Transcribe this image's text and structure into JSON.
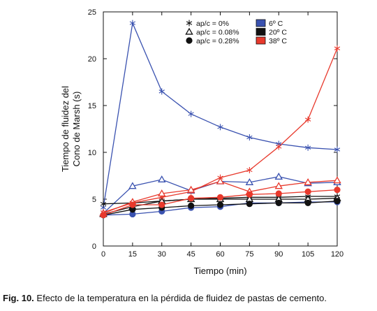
{
  "chart_data": {
    "type": "line",
    "xlabel": "Tiempo (min)",
    "ylabel_lines": [
      "Tiempo de fluidez del",
      "Cono de Marsh (s)"
    ],
    "xlim": [
      0,
      120
    ],
    "ylim": [
      0,
      25
    ],
    "x_ticks": [
      0,
      15,
      30,
      45,
      60,
      75,
      90,
      105,
      120
    ],
    "y_ticks": [
      0,
      5,
      10,
      15,
      20,
      25
    ],
    "grid": false,
    "legend_position": "top-right",
    "marker_legend": [
      {
        "label": "ap/c = 0%",
        "marker": "asterisk"
      },
      {
        "label": "ap/c = 0.08%",
        "marker": "triangle"
      },
      {
        "label": "ap/c = 0.28%",
        "marker": "circle"
      }
    ],
    "color_legend": [
      {
        "label": "6º C",
        "color": "#3a52b0"
      },
      {
        "label": "20º C",
        "color": "#111111"
      },
      {
        "label": "38º C",
        "color": "#e8392c"
      }
    ],
    "x": [
      0,
      15,
      30,
      45,
      60,
      75,
      90,
      105,
      120
    ],
    "series": [
      {
        "temp": "6º C",
        "dosage": "ap/c = 0%",
        "color": "#3a52b0",
        "marker": "asterisk",
        "values": [
          4.1,
          23.8,
          16.5,
          14.1,
          12.7,
          11.6,
          10.9,
          10.5,
          10.3
        ]
      },
      {
        "temp": "6º C",
        "dosage": "ap/c = 0.08%",
        "color": "#3a52b0",
        "marker": "triangle",
        "values": [
          3.5,
          6.4,
          7.1,
          5.9,
          6.9,
          6.8,
          7.4,
          6.7,
          6.8
        ]
      },
      {
        "temp": "6º C",
        "dosage": "ap/c = 0.28%",
        "color": "#3a52b0",
        "marker": "circle",
        "values": [
          3.3,
          3.4,
          3.7,
          4.1,
          4.2,
          4.6,
          4.6,
          4.7,
          4.7
        ]
      },
      {
        "temp": "20º C",
        "dosage": "ap/c = 0%",
        "color": "#111111",
        "marker": "asterisk",
        "values": [
          4.5,
          4.6,
          4.8,
          5.0,
          5.1,
          5.2,
          5.2,
          5.3,
          5.3
        ]
      },
      {
        "temp": "20º C",
        "dosage": "ap/c = 0.08%",
        "color": "#111111",
        "marker": "triangle",
        "values": [
          3.4,
          4.2,
          4.8,
          5.0,
          5.0,
          5.0,
          5.0,
          5.0,
          5.1
        ]
      },
      {
        "temp": "20º C",
        "dosage": "ap/c = 0.28%",
        "color": "#111111",
        "marker": "circle",
        "values": [
          3.3,
          3.9,
          4.1,
          4.3,
          4.4,
          4.5,
          4.6,
          4.6,
          4.8
        ]
      },
      {
        "temp": "38º C",
        "dosage": "ap/c = 0%",
        "color": "#e8392c",
        "marker": "asterisk",
        "values": [
          3.6,
          4.6,
          5.2,
          5.8,
          7.3,
          8.1,
          10.6,
          13.5,
          21.1
        ]
      },
      {
        "temp": "38º C",
        "dosage": "ap/c = 0.08%",
        "color": "#e8392c",
        "marker": "triangle",
        "values": [
          3.5,
          4.7,
          5.6,
          6.0,
          6.9,
          5.8,
          6.4,
          6.8,
          7.0
        ]
      },
      {
        "temp": "38º C",
        "dosage": "ap/c = 0.28%",
        "color": "#e8392c",
        "marker": "circle",
        "values": [
          3.3,
          4.4,
          4.4,
          5.1,
          5.2,
          5.5,
          5.6,
          5.8,
          6.0
        ]
      }
    ]
  },
  "caption": {
    "label": "Fig. 10.",
    "text": " Efecto de la temperatura en la pérdida de fluidez de pastas de cemento."
  }
}
